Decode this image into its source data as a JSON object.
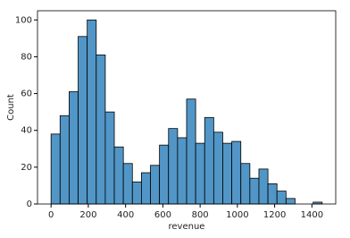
{
  "chart_data": {
    "type": "histogram",
    "xlabel": "revenue",
    "ylabel": "Count",
    "bins": [
      0,
      48.5,
      97,
      145.5,
      194,
      242.5,
      291,
      339.5,
      388,
      436.5,
      485,
      533.5,
      582,
      630.5,
      679,
      727.5,
      776,
      824.5,
      873,
      921.5,
      970,
      1018.5,
      1067,
      1115.5,
      1164,
      1212.5,
      1261,
      1309.5,
      1358,
      1406.5,
      1455
    ],
    "values": [
      38,
      48,
      61,
      91,
      100,
      81,
      50,
      31,
      22,
      12,
      17,
      21,
      32,
      41,
      36,
      57,
      33,
      47,
      39,
      33,
      34,
      22,
      14,
      19,
      11,
      7,
      3,
      0,
      0,
      1
    ],
    "color": "#5196c6",
    "xlim": [
      -72.75,
      1527.75
    ],
    "xticks": [
      0,
      200,
      400,
      600,
      800,
      1000,
      1200,
      1400
    ],
    "ylim": [
      0,
      105
    ],
    "yticks": [
      0,
      20,
      40,
      60,
      80,
      100
    ]
  }
}
